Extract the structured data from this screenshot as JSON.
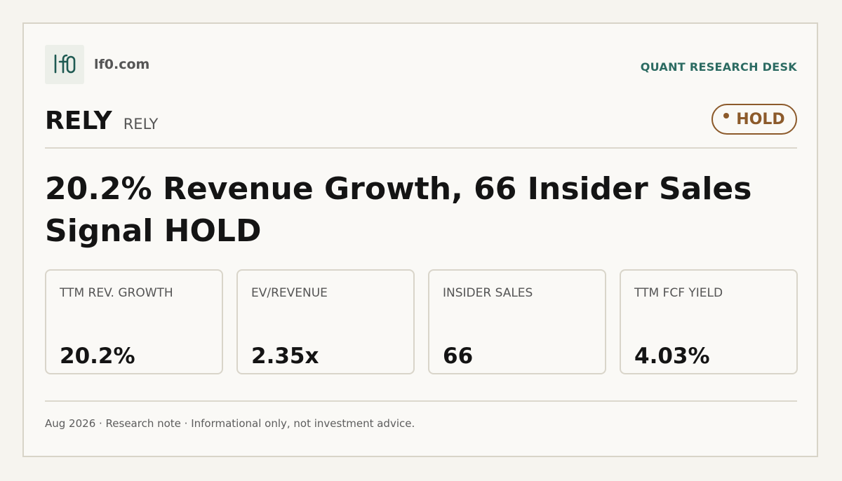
{
  "brand": {
    "logo_text": "lf0",
    "domain": "lf0.com",
    "desk": "QUANT RESEARCH DESK"
  },
  "ticker": {
    "symbol": "RELY",
    "name": "RELY"
  },
  "rating": {
    "label": "HOLD",
    "color": "#8c5a2b"
  },
  "headline": "20.2% Revenue Growth, 66 Insider Sales Signal HOLD",
  "metrics": [
    {
      "label": "TTM REV. GROWTH",
      "value": "20.2%"
    },
    {
      "label": "EV/REVENUE",
      "value": "2.35x"
    },
    {
      "label": "INSIDER SALES",
      "value": "66"
    },
    {
      "label": "TTM FCF YIELD",
      "value": "4.03%"
    }
  ],
  "footer": {
    "note": "Aug 2026 · Research note · Informational only, not investment advice."
  },
  "colors": {
    "accent": "#2c6b62",
    "background": "#faf9f6",
    "text": "#141414"
  }
}
